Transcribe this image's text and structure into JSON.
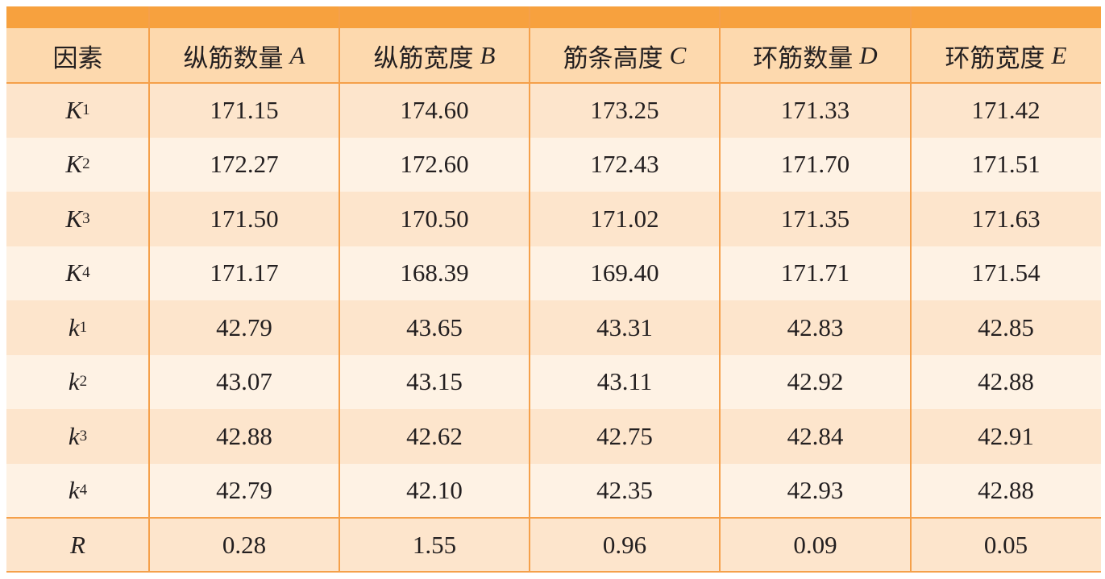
{
  "table": {
    "header": [
      {
        "text": "因素"
      },
      {
        "text": "纵筋数量",
        "var": "A"
      },
      {
        "text": "纵筋宽度",
        "var": "B"
      },
      {
        "text": "筋条高度",
        "var": "C"
      },
      {
        "text": "环筋数量",
        "var": "D"
      },
      {
        "text": "环筋宽度",
        "var": "E"
      }
    ],
    "rows": [
      {
        "label": {
          "symbol": "K",
          "sub": "1"
        },
        "cells": [
          "171.15",
          "174.60",
          "173.25",
          "171.33",
          "171.42"
        ]
      },
      {
        "label": {
          "symbol": "K",
          "sub": "2"
        },
        "cells": [
          "172.27",
          "172.60",
          "172.43",
          "171.70",
          "171.51"
        ]
      },
      {
        "label": {
          "symbol": "K",
          "sub": "3"
        },
        "cells": [
          "171.50",
          "170.50",
          "171.02",
          "171.35",
          "171.63"
        ]
      },
      {
        "label": {
          "symbol": "K",
          "sub": "4"
        },
        "cells": [
          "171.17",
          "168.39",
          "169.40",
          "171.71",
          "171.54"
        ]
      },
      {
        "label": {
          "symbol": "k",
          "sub": "1"
        },
        "cells": [
          "42.79",
          "43.65",
          "43.31",
          "42.83",
          "42.85"
        ]
      },
      {
        "label": {
          "symbol": "k",
          "sub": "2"
        },
        "cells": [
          "43.07",
          "43.15",
          "43.11",
          "42.92",
          "42.88"
        ]
      },
      {
        "label": {
          "symbol": "k",
          "sub": "3"
        },
        "cells": [
          "42.88",
          "42.62",
          "42.75",
          "42.84",
          "42.91"
        ]
      },
      {
        "label": {
          "symbol": "k",
          "sub": "4"
        },
        "cells": [
          "42.79",
          "42.10",
          "42.35",
          "42.93",
          "42.88"
        ]
      },
      {
        "label": {
          "symbol": "R"
        },
        "cells": [
          "0.28",
          "1.55",
          "0.96",
          "0.09",
          "0.05"
        ]
      }
    ]
  }
}
